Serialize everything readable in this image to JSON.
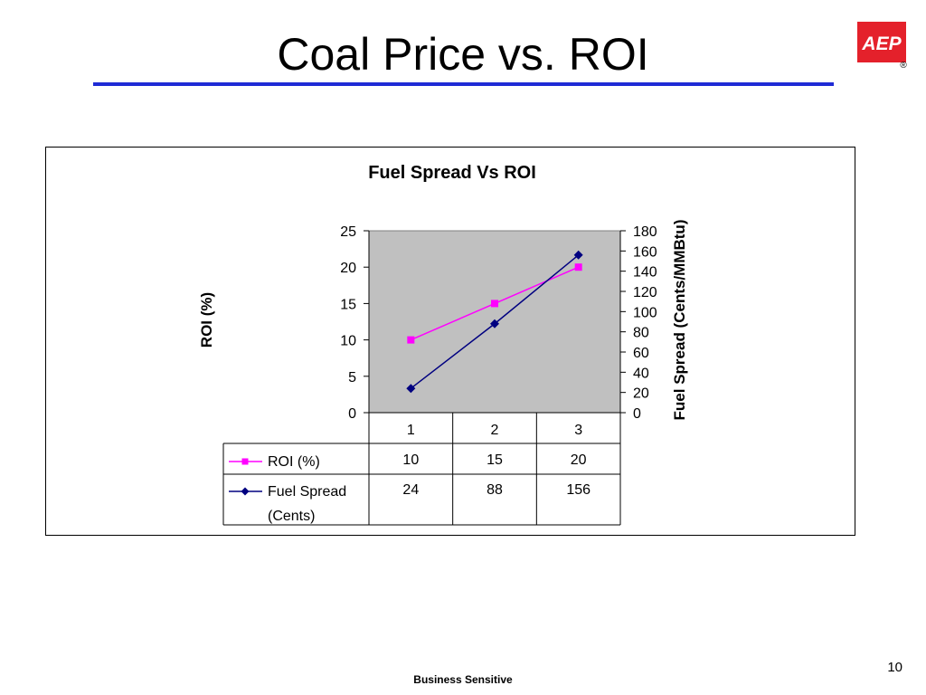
{
  "slide": {
    "title": "Coal Price vs. ROI",
    "footer": "Business Sensitive",
    "page_number": "10",
    "logo_text": "AEP",
    "registered_mark": "®"
  },
  "colors": {
    "title_rule": "#1f2bd6",
    "roi_series": "#ff00ff",
    "fuel_series": "#000080",
    "plot_background": "#c0c0c0",
    "logo_red": "#e4212b"
  },
  "chart_data": {
    "type": "line",
    "title": "Fuel Spread Vs ROI",
    "categories": [
      "1",
      "2",
      "3"
    ],
    "ylabel": "ROI (%)",
    "y2label": "Fuel Spread (Cents/MMBtu)",
    "ylim": [
      0,
      25
    ],
    "y_ticks": [
      "25",
      "20",
      "15",
      "10",
      "5",
      "0"
    ],
    "y2lim": [
      0,
      180
    ],
    "y2_ticks": [
      "180",
      "160",
      "140",
      "120",
      "100",
      "80",
      "60",
      "40",
      "20",
      "0"
    ],
    "grid": false,
    "plot_background": "#c0c0c0",
    "series": [
      {
        "name": "ROI (%)",
        "axis": "left",
        "marker": "square",
        "values": [
          10,
          15,
          20
        ]
      },
      {
        "name": "Fuel Spread (Cents)",
        "name_lines": [
          "Fuel Spread",
          "(Cents)"
        ],
        "axis": "right",
        "marker": "diamond",
        "values": [
          24,
          88,
          156
        ]
      }
    ],
    "data_table": {
      "rows": [
        {
          "label": "ROI (%)",
          "values": [
            "10",
            "15",
            "20"
          ]
        },
        {
          "label_lines": [
            "Fuel Spread",
            "(Cents)"
          ],
          "values": [
            "24",
            "88",
            "156"
          ]
        }
      ]
    }
  }
}
